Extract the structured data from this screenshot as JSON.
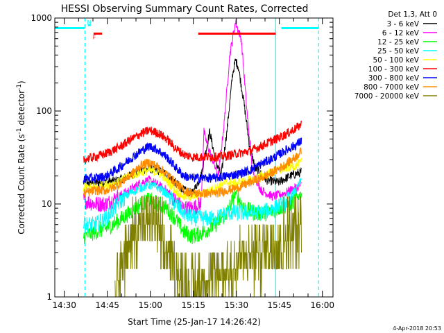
{
  "chart_data": {
    "type": "line",
    "title": "HESSI Observing Summary Count Rates, Corrected",
    "ylabel_parts": [
      "Corrected Count Rate (s",
      "-1",
      " detector",
      "-1",
      ")"
    ],
    "xlabel": "Start Time (25-Jan-17 14:26:42)",
    "date_stamp": "4-Apr-2018 20:53",
    "x_unit": "minutes since 14:26:42",
    "xlim": [
      0,
      97
    ],
    "ylim": [
      1,
      1000
    ],
    "yscale": "log",
    "y_tick_labels": [
      {
        "value": 1,
        "label": "1"
      },
      {
        "value": 10,
        "label": "10"
      },
      {
        "value": 100,
        "label": "100"
      },
      {
        "value": 1000,
        "label": "1000"
      }
    ],
    "x_tick_labels": [
      {
        "value": 3.3,
        "label": "14:30"
      },
      {
        "value": 18.3,
        "label": "14:45"
      },
      {
        "value": 33.3,
        "label": "15:00"
      },
      {
        "value": 48.3,
        "label": "15:15"
      },
      {
        "value": 63.3,
        "label": "15:30"
      },
      {
        "value": 78.3,
        "label": "15:45"
      },
      {
        "value": 93.3,
        "label": "16:00"
      }
    ],
    "legend_title": "Det 1,3, Att 0",
    "legend_position": "top-right",
    "series": [
      {
        "name": "3 - 6 keV",
        "color": "#000000",
        "points": [
          [
            10,
            17
          ],
          [
            14,
            17
          ],
          [
            18,
            17
          ],
          [
            22,
            18
          ],
          [
            26,
            20
          ],
          [
            30,
            23
          ],
          [
            33,
            24
          ],
          [
            36,
            23
          ],
          [
            39,
            21
          ],
          [
            42,
            17
          ],
          [
            45,
            14
          ],
          [
            48,
            13
          ],
          [
            51,
            20
          ],
          [
            54,
            60
          ],
          [
            56,
            30
          ],
          [
            58,
            20
          ],
          [
            60,
            60
          ],
          [
            62,
            250
          ],
          [
            63,
            350
          ],
          [
            64,
            300
          ],
          [
            66,
            120
          ],
          [
            68,
            40
          ],
          [
            70,
            24
          ],
          [
            74,
            18
          ],
          [
            78,
            17
          ],
          [
            82,
            20
          ],
          [
            86,
            22
          ]
        ]
      },
      {
        "name": "6 - 12 keV",
        "color": "#ff00ff",
        "points": [
          [
            10,
            11
          ],
          [
            14,
            10
          ],
          [
            18,
            10
          ],
          [
            22,
            12
          ],
          [
            26,
            14
          ],
          [
            30,
            17
          ],
          [
            33,
            18
          ],
          [
            36,
            16
          ],
          [
            39,
            14
          ],
          [
            42,
            11
          ],
          [
            45,
            9
          ],
          [
            48,
            9
          ],
          [
            51,
            10
          ],
          [
            52,
            60
          ],
          [
            53,
            45
          ],
          [
            55,
            30
          ],
          [
            57,
            20
          ],
          [
            59,
            70
          ],
          [
            61,
            400
          ],
          [
            63,
            900
          ],
          [
            65,
            600
          ],
          [
            67,
            100
          ],
          [
            69,
            22
          ],
          [
            72,
            14
          ],
          [
            76,
            12
          ],
          [
            80,
            13
          ],
          [
            84,
            15
          ],
          [
            86,
            16
          ]
        ]
      },
      {
        "name": "12 - 25 keV",
        "color": "#00ff00",
        "points": [
          [
            10,
            4.5
          ],
          [
            14,
            5
          ],
          [
            18,
            5.5
          ],
          [
            22,
            6.5
          ],
          [
            26,
            8
          ],
          [
            30,
            10
          ],
          [
            33,
            11
          ],
          [
            36,
            10
          ],
          [
            39,
            9
          ],
          [
            42,
            7
          ],
          [
            45,
            5
          ],
          [
            48,
            4.5
          ],
          [
            52,
            5
          ],
          [
            56,
            6
          ],
          [
            60,
            8
          ],
          [
            63,
            13
          ],
          [
            66,
            9
          ],
          [
            70,
            8
          ],
          [
            74,
            8
          ],
          [
            78,
            9
          ],
          [
            82,
            10
          ],
          [
            86,
            13
          ]
        ]
      },
      {
        "name": "25 - 50 keV",
        "color": "#00ffff",
        "points": [
          [
            10,
            6
          ],
          [
            14,
            6
          ],
          [
            18,
            7
          ],
          [
            22,
            10
          ],
          [
            26,
            13
          ],
          [
            30,
            15
          ],
          [
            33,
            16
          ],
          [
            36,
            15
          ],
          [
            39,
            13
          ],
          [
            42,
            10
          ],
          [
            45,
            8
          ],
          [
            48,
            7
          ],
          [
            52,
            7
          ],
          [
            56,
            7
          ],
          [
            60,
            8
          ],
          [
            64,
            8
          ],
          [
            68,
            8
          ],
          [
            72,
            8
          ],
          [
            76,
            9
          ],
          [
            80,
            10
          ],
          [
            84,
            14
          ],
          [
            86,
            18
          ]
        ]
      },
      {
        "name": "50 - 100 keV",
        "color": "#ffff00",
        "points": [
          [
            10,
            15
          ],
          [
            14,
            15
          ],
          [
            18,
            16
          ],
          [
            22,
            17
          ],
          [
            26,
            20
          ],
          [
            30,
            22
          ],
          [
            33,
            23
          ],
          [
            36,
            22
          ],
          [
            39,
            18
          ],
          [
            42,
            14
          ],
          [
            45,
            12
          ],
          [
            48,
            12
          ],
          [
            52,
            13
          ],
          [
            56,
            15
          ],
          [
            60,
            17
          ],
          [
            64,
            17
          ],
          [
            68,
            18
          ],
          [
            72,
            20
          ],
          [
            76,
            22
          ],
          [
            80,
            24
          ],
          [
            84,
            26
          ],
          [
            86,
            28
          ]
        ]
      },
      {
        "name": "100 - 300 keV",
        "color": "#ff0000",
        "points": [
          [
            10,
            30
          ],
          [
            14,
            32
          ],
          [
            18,
            35
          ],
          [
            22,
            40
          ],
          [
            26,
            48
          ],
          [
            30,
            57
          ],
          [
            33,
            62
          ],
          [
            36,
            58
          ],
          [
            39,
            50
          ],
          [
            42,
            40
          ],
          [
            45,
            34
          ],
          [
            48,
            32
          ],
          [
            52,
            32
          ],
          [
            56,
            32
          ],
          [
            60,
            33
          ],
          [
            64,
            35
          ],
          [
            68,
            37
          ],
          [
            72,
            42
          ],
          [
            76,
            48
          ],
          [
            80,
            55
          ],
          [
            84,
            65
          ],
          [
            86,
            72
          ]
        ]
      },
      {
        "name": "300 - 800 keV",
        "color": "#0000ff",
        "points": [
          [
            10,
            19
          ],
          [
            14,
            19
          ],
          [
            18,
            20
          ],
          [
            22,
            24
          ],
          [
            26,
            30
          ],
          [
            30,
            37
          ],
          [
            33,
            42
          ],
          [
            36,
            38
          ],
          [
            39,
            32
          ],
          [
            42,
            25
          ],
          [
            45,
            20
          ],
          [
            48,
            19
          ],
          [
            52,
            19
          ],
          [
            56,
            19
          ],
          [
            60,
            20
          ],
          [
            64,
            21
          ],
          [
            68,
            23
          ],
          [
            72,
            27
          ],
          [
            76,
            31
          ],
          [
            80,
            37
          ],
          [
            84,
            43
          ],
          [
            86,
            48
          ]
        ]
      },
      {
        "name": "800 - 7000 keV",
        "color": "#ff8c00",
        "points": [
          [
            10,
            13
          ],
          [
            14,
            14
          ],
          [
            18,
            14
          ],
          [
            22,
            16
          ],
          [
            26,
            20
          ],
          [
            30,
            26
          ],
          [
            33,
            28
          ],
          [
            36,
            25
          ],
          [
            39,
            21
          ],
          [
            42,
            17
          ],
          [
            45,
            14
          ],
          [
            48,
            13
          ],
          [
            52,
            13
          ],
          [
            56,
            13
          ],
          [
            60,
            14
          ],
          [
            64,
            15
          ],
          [
            68,
            17
          ],
          [
            72,
            19
          ],
          [
            76,
            22
          ],
          [
            80,
            26
          ],
          [
            84,
            32
          ],
          [
            86,
            37
          ]
        ]
      },
      {
        "name": "7000 - 20000 keV",
        "color": "#808000",
        "points": [
          [
            21,
            1
          ],
          [
            22,
            1.6
          ],
          [
            24,
            2.2
          ],
          [
            26,
            3
          ],
          [
            28,
            4.2
          ],
          [
            30,
            5
          ],
          [
            32,
            6
          ],
          [
            34,
            5
          ],
          [
            36,
            4.2
          ],
          [
            38,
            3
          ],
          [
            40,
            2.2
          ],
          [
            42,
            1.6
          ],
          [
            44,
            1.2
          ],
          [
            48,
            1
          ],
          [
            52,
            1.1
          ],
          [
            56,
            1.3
          ],
          [
            60,
            1.6
          ],
          [
            64,
            1.9
          ],
          [
            68,
            2.2
          ],
          [
            72,
            2.5
          ],
          [
            76,
            3
          ],
          [
            80,
            3.5
          ],
          [
            84,
            4.2
          ],
          [
            86,
            4.8
          ]
        ]
      }
    ],
    "flag_bars": [
      {
        "label": "",
        "color": "#00ffff",
        "x": [
          0,
          10.5
        ],
        "y": 780
      },
      {
        "label": "N",
        "color": "#00ffff",
        "x": [
          11.5,
          12.5
        ],
        "y": 840
      },
      {
        "label": "F",
        "color": "#ff0000",
        "x": [
          13.5,
          16.5
        ],
        "y": 680
      },
      {
        "label": "",
        "color": "#ff0000",
        "x": [
          50,
          77
        ],
        "y": 680
      },
      {
        "label": "",
        "color": "#00ffff",
        "x": [
          79,
          92
        ],
        "y": 780
      }
    ],
    "vertical_lines": [
      {
        "x": 10.5,
        "color": "#00ffff",
        "style": "dashed"
      },
      {
        "x": 77,
        "color": "#00ffff",
        "style": "solid"
      },
      {
        "x": 92,
        "color": "#00ffff",
        "style": "dashed"
      }
    ]
  }
}
